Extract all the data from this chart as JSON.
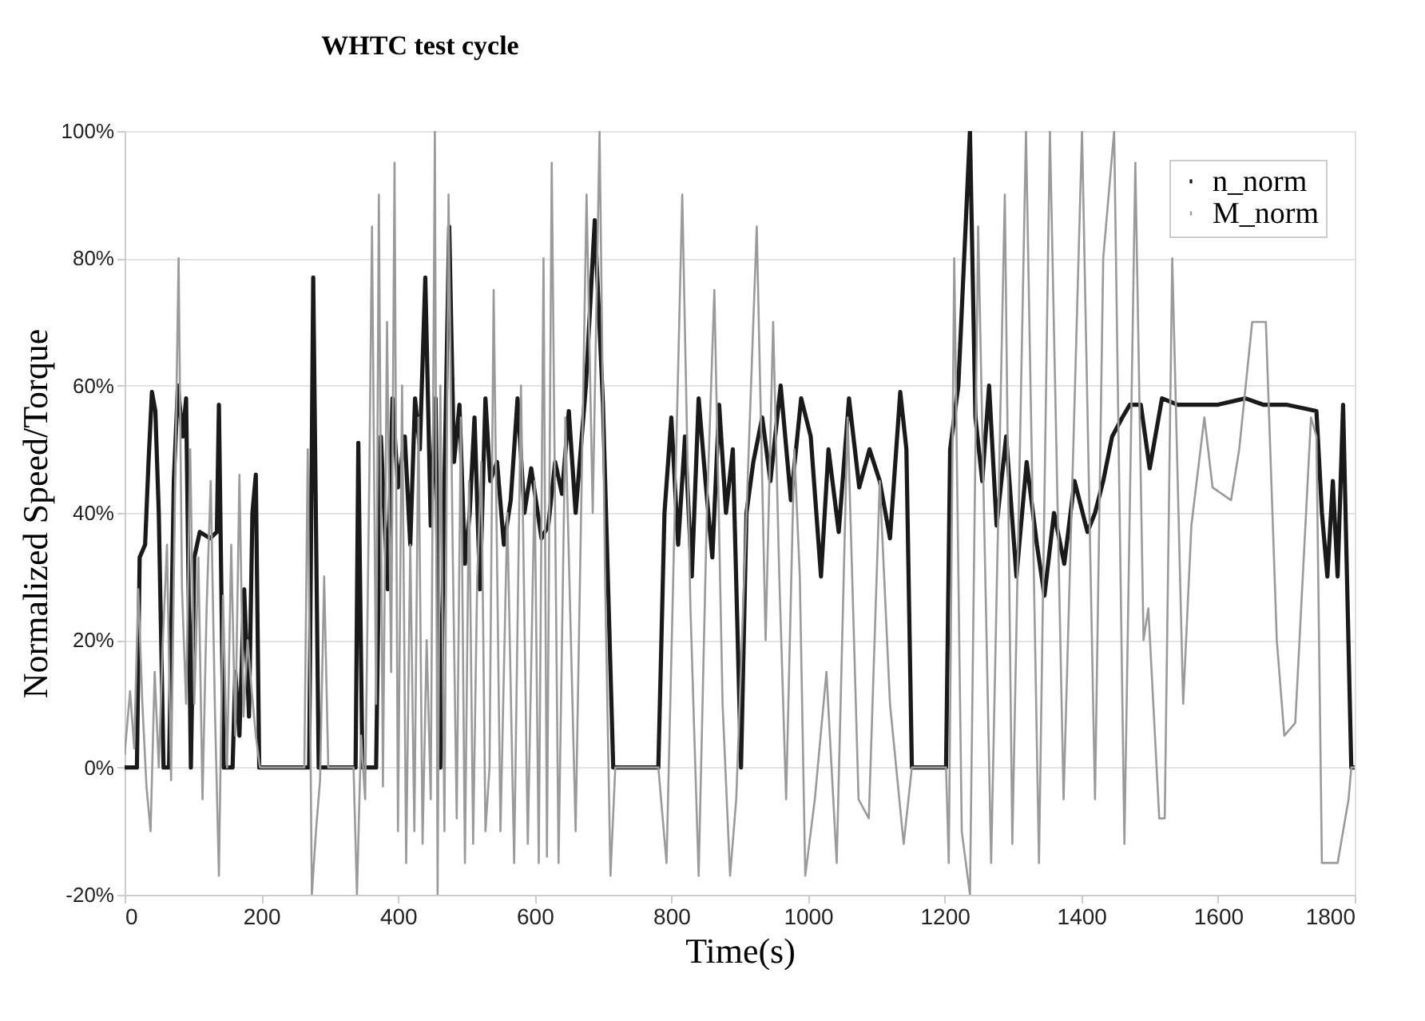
{
  "chart_data": {
    "type": "line",
    "title": "WHTC test cycle",
    "xlabel": "Time(s)",
    "ylabel": "Normalized Speed/Torque",
    "xlim": [
      0,
      1800
    ],
    "xticks": [
      0,
      200,
      400,
      600,
      800,
      1000,
      1200,
      1400,
      1600,
      1800
    ],
    "ylim": [
      -20,
      100
    ],
    "yticks": [
      {
        "value": -20,
        "label": "-20%"
      },
      {
        "value": 0,
        "label": "0%"
      },
      {
        "value": 20,
        "label": "20%"
      },
      {
        "value": 40,
        "label": "40%"
      },
      {
        "value": 60,
        "label": "60%"
      },
      {
        "value": 80,
        "label": "80%"
      },
      {
        "value": 100,
        "label": "100%"
      }
    ],
    "grid": "y",
    "legend": "top right",
    "line_style": "solid",
    "marker": "none",
    "series": [
      {
        "name": "n_norm",
        "color": "#1a1a1a",
        "x": [
          0,
          18,
          22,
          30,
          35,
          40,
          45,
          50,
          57,
          65,
          72,
          78,
          85,
          90,
          97,
          102,
          110,
          125,
          135,
          138,
          145,
          158,
          162,
          168,
          175,
          182,
          187,
          192,
          197,
          270,
          276,
          284,
          338,
          342,
          348,
          368,
          375,
          385,
          392,
          400,
          410,
          418,
          425,
          432,
          440,
          448,
          455,
          462,
          468,
          475,
          482,
          490,
          498,
          505,
          512,
          520,
          528,
          535,
          545,
          555,
          565,
          575,
          585,
          595,
          610,
          620,
          630,
          640,
          650,
          660,
          675,
          688,
          700,
          715,
          781,
          790,
          800,
          810,
          820,
          830,
          840,
          850,
          860,
          870,
          880,
          890,
          902,
          910,
          920,
          933,
          945,
          960,
          975,
          990,
          1004,
          1019,
          1030,
          1045,
          1060,
          1075,
          1090,
          1105,
          1120,
          1135,
          1144,
          1152,
          1202,
          1208,
          1220,
          1237,
          1245,
          1255,
          1265,
          1276,
          1290,
          1305,
          1320,
          1335,
          1346,
          1360,
          1375,
          1390,
          1409,
          1420,
          1432,
          1445,
          1460,
          1471,
          1487,
          1500,
          1518,
          1541,
          1600,
          1640,
          1666,
          1700,
          1744,
          1752,
          1760,
          1768,
          1775,
          1783,
          1795,
          1800
        ],
        "values": [
          0,
          0,
          33,
          35,
          48,
          59,
          56,
          40,
          0,
          0,
          45,
          60,
          52,
          58,
          0,
          33,
          37,
          36,
          37,
          57,
          0,
          0,
          15,
          5,
          28,
          8,
          40,
          46,
          0,
          0,
          77,
          0,
          0,
          51,
          0,
          0,
          52,
          28,
          58,
          44,
          52,
          35,
          58,
          50,
          77,
          38,
          58,
          0,
          45,
          85,
          48,
          57,
          32,
          40,
          55,
          28,
          58,
          45,
          48,
          35,
          42,
          58,
          40,
          47,
          36,
          38,
          48,
          43,
          56,
          40,
          60,
          86,
          57,
          0,
          0,
          40,
          55,
          35,
          52,
          30,
          58,
          45,
          33,
          57,
          40,
          50,
          0,
          40,
          48,
          55,
          45,
          60,
          42,
          58,
          52,
          30,
          50,
          37,
          58,
          44,
          50,
          45,
          36,
          59,
          50,
          0,
          0,
          50,
          60,
          100,
          55,
          45,
          60,
          38,
          52,
          30,
          48,
          35,
          27,
          40,
          32,
          45,
          37,
          40,
          45,
          52,
          55,
          57,
          57,
          47,
          58,
          57,
          57,
          58,
          57,
          57,
          56,
          40,
          30,
          45,
          30,
          57,
          0,
          0
        ]
      },
      {
        "name": "M_norm",
        "color": "#9a9a9a",
        "x": [
          0,
          8,
          14,
          20,
          26,
          32,
          38,
          44,
          50,
          56,
          62,
          68,
          74,
          79,
          84,
          90,
          96,
          102,
          108,
          114,
          120,
          126,
          132,
          138,
          144,
          150,
          156,
          162,
          168,
          174,
          180,
          186,
          192,
          198,
          263,
          268,
          274,
          280,
          286,
          292,
          298,
          335,
          340,
          346,
          352,
          358,
          362,
          368,
          372,
          378,
          384,
          390,
          395,
          400,
          406,
          412,
          418,
          424,
          430,
          436,
          442,
          448,
          454,
          458,
          462,
          468,
          474,
          480,
          486,
          492,
          498,
          504,
          510,
          516,
          522,
          528,
          534,
          540,
          550,
          560,
          570,
          580,
          590,
          600,
          606,
          613,
          618,
          625,
          635,
          645,
          660,
          676,
          685,
          695,
          703,
          711,
          718,
          781,
          793,
          805,
          816,
          828,
          840,
          852,
          863,
          875,
          886,
          895,
          910,
          925,
          938,
          949,
          958,
          968,
          980,
          988,
          996,
          1010,
          1027,
          1042,
          1058,
          1074,
          1089,
          1105,
          1120,
          1140,
          1152,
          1202,
          1206,
          1214,
          1225,
          1237,
          1249,
          1268,
          1288,
          1299,
          1319,
          1338,
          1354,
          1374,
          1401,
          1420,
          1432,
          1448,
          1463,
          1479,
          1491,
          1498,
          1514,
          1522,
          1533,
          1549,
          1561,
          1580,
          1592,
          1619,
          1631,
          1650,
          1670,
          1686,
          1697,
          1713,
          1736,
          1744,
          1752,
          1775,
          1791,
          1795,
          1800
        ],
        "values": [
          2,
          12,
          3,
          28,
          10,
          -3,
          -10,
          15,
          0,
          20,
          35,
          -2,
          45,
          80,
          28,
          10,
          50,
          10,
          33,
          -5,
          25,
          45,
          10,
          -17,
          27,
          0,
          35,
          5,
          46,
          8,
          20,
          12,
          5,
          0,
          0,
          50,
          -20,
          -10,
          -2,
          30,
          0,
          0,
          -20,
          5,
          -5,
          45,
          85,
          10,
          90,
          -3,
          70,
          15,
          95,
          -10,
          60,
          -15,
          35,
          -10,
          55,
          -12,
          20,
          -5,
          100,
          -20,
          60,
          -10,
          90,
          35,
          -8,
          55,
          -15,
          45,
          -12,
          30,
          48,
          -10,
          0,
          75,
          -10,
          40,
          -15,
          60,
          -12,
          45,
          -15,
          80,
          -14,
          95,
          -15,
          55,
          -10,
          90,
          40,
          100,
          30,
          -17,
          0,
          0,
          -15,
          40,
          90,
          25,
          -17,
          40,
          75,
          10,
          -17,
          -5,
          40,
          85,
          20,
          70,
          30,
          -5,
          50,
          30,
          -17,
          -5,
          15,
          -15,
          55,
          -5,
          -8,
          45,
          10,
          -12,
          0,
          0,
          -15,
          80,
          -10,
          -20,
          85,
          -15,
          90,
          -12,
          100,
          -15,
          100,
          -5,
          100,
          -5,
          80,
          100,
          -12,
          95,
          20,
          25,
          -8,
          -8,
          80,
          10,
          38,
          55,
          44,
          42,
          50,
          70,
          70,
          20,
          5,
          7,
          55,
          52,
          -15,
          -15,
          -5,
          0,
          0
        ]
      }
    ]
  }
}
